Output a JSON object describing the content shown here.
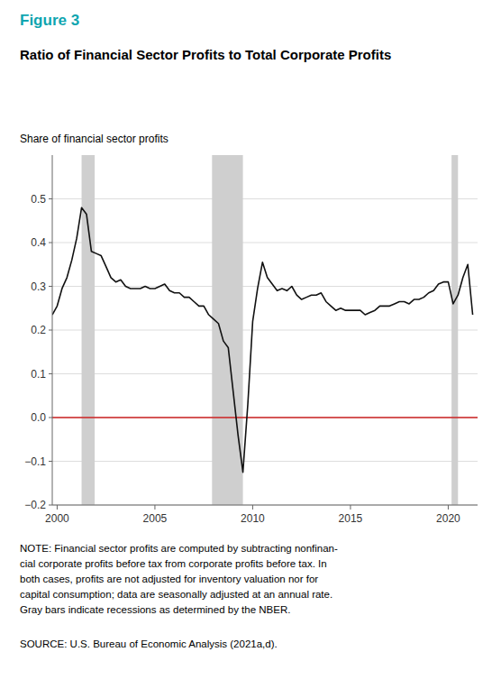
{
  "chart_data": {
    "type": "line",
    "title": "Ratio of Financial Sector Profits to Total Corporate Profits",
    "y_label": "Share of financial sector profits",
    "annotations": [
      "Figure 3",
      "NOTE: Financial sector profits are computed by subtracting nonfinan-\ncial corporate profits before tax from corporate profits before tax. In\nboth cases, profits are not adjusted for inventory valuation nor for\ncapital consumption; data are seasonally adjusted at an annual rate.\nGray bars indicate recessions as determined by the NBER.",
      "SOURCE: U.S. Bureau of Economic Analysis (2021a,d)."
    ],
    "color": "#111111",
    "grid": true,
    "xlim": [
      1999.75,
      2021.5
    ],
    "ylim": [
      -0.2,
      0.6
    ],
    "xticks": [
      2000,
      2005,
      2010,
      2015,
      2020
    ],
    "yticks": [
      {
        "value": -0.2,
        "label": "−0.2"
      },
      {
        "value": -0.1,
        "label": "−0.1"
      },
      {
        "value": 0.0,
        "label": "0.0"
      },
      0.1,
      0.2,
      0.3,
      0.4,
      0.5
    ],
    "recession_bands": [
      [
        2001.25,
        2001.92
      ],
      [
        2007.92,
        2009.5
      ],
      [
        2020.17,
        2020.5
      ]
    ],
    "x": [
      1999.75,
      2000.0,
      2000.25,
      2000.5,
      2000.75,
      2001.0,
      2001.25,
      2001.5,
      2001.75,
      2002.0,
      2002.25,
      2002.5,
      2002.75,
      2003.0,
      2003.25,
      2003.5,
      2003.75,
      2004.0,
      2004.25,
      2004.5,
      2004.75,
      2005.0,
      2005.25,
      2005.5,
      2005.75,
      2006.0,
      2006.25,
      2006.5,
      2006.75,
      2007.0,
      2007.25,
      2007.5,
      2007.75,
      2008.0,
      2008.25,
      2008.5,
      2008.75,
      2009.0,
      2009.25,
      2009.5,
      2009.75,
      2010.0,
      2010.25,
      2010.5,
      2010.75,
      2011.0,
      2011.25,
      2011.5,
      2011.75,
      2012.0,
      2012.25,
      2012.5,
      2012.75,
      2013.0,
      2013.25,
      2013.5,
      2013.75,
      2014.0,
      2014.25,
      2014.5,
      2014.75,
      2015.0,
      2015.25,
      2015.5,
      2015.75,
      2016.0,
      2016.25,
      2016.5,
      2016.75,
      2017.0,
      2017.25,
      2017.5,
      2017.75,
      2018.0,
      2018.25,
      2018.5,
      2018.75,
      2019.0,
      2019.25,
      2019.5,
      2019.75,
      2020.0,
      2020.25,
      2020.5,
      2020.75,
      2021.0,
      2021.25
    ],
    "values": [
      0.235,
      0.255,
      0.295,
      0.32,
      0.36,
      0.41,
      0.48,
      0.465,
      0.38,
      0.375,
      0.37,
      0.345,
      0.32,
      0.31,
      0.315,
      0.3,
      0.295,
      0.295,
      0.295,
      0.3,
      0.295,
      0.295,
      0.3,
      0.305,
      0.29,
      0.285,
      0.285,
      0.275,
      0.275,
      0.265,
      0.255,
      0.255,
      0.235,
      0.225,
      0.215,
      0.175,
      0.16,
      0.06,
      -0.04,
      -0.125,
      0.03,
      0.22,
      0.295,
      0.355,
      0.32,
      0.305,
      0.29,
      0.295,
      0.29,
      0.3,
      0.28,
      0.27,
      0.275,
      0.28,
      0.28,
      0.285,
      0.265,
      0.255,
      0.245,
      0.25,
      0.245,
      0.245,
      0.245,
      0.245,
      0.235,
      0.24,
      0.245,
      0.255,
      0.255,
      0.255,
      0.26,
      0.265,
      0.265,
      0.26,
      0.27,
      0.27,
      0.275,
      0.285,
      0.29,
      0.305,
      0.31,
      0.31,
      0.26,
      0.28,
      0.32,
      0.35,
      0.235
    ]
  }
}
